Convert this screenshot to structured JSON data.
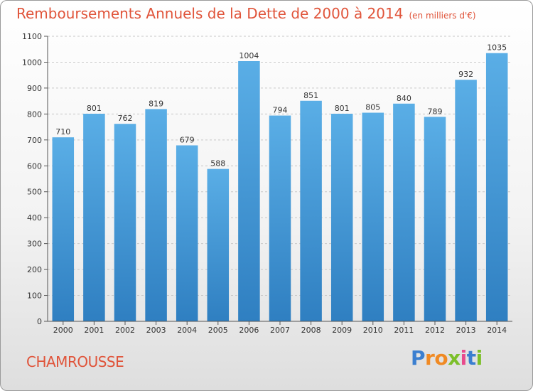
{
  "chart_data": {
    "type": "bar",
    "title": "Remboursements Annuels de la Dette de 2000 à 2014",
    "unit_label": "(en milliers d'€)",
    "xlabel": "",
    "ylabel": "",
    "categories": [
      "2000",
      "2001",
      "2002",
      "2003",
      "2004",
      "2005",
      "2006",
      "2007",
      "2008",
      "2009",
      "2010",
      "2011",
      "2012",
      "2013",
      "2014"
    ],
    "values": [
      710,
      801,
      762,
      819,
      679,
      588,
      1004,
      794,
      851,
      801,
      805,
      840,
      789,
      932,
      1035
    ],
    "ylim": [
      0,
      1100
    ],
    "yticks": [
      0,
      100,
      200,
      300,
      400,
      500,
      600,
      700,
      800,
      900,
      1000,
      1100
    ],
    "grid": true,
    "legend": "none",
    "colors": {
      "bar_top": "#5aaee6",
      "bar_bottom": "#2f7fc1",
      "title": "#e0543a",
      "grid": "#c8c8c8"
    }
  },
  "place_name": "CHAMROUSSE",
  "logo": {
    "letters": [
      {
        "ch": "P",
        "color": "#3b7fd0"
      },
      {
        "ch": "r",
        "color": "#f08a24"
      },
      {
        "ch": "o",
        "color": "#f08a24"
      },
      {
        "ch": "x",
        "color": "#7cbf2a"
      },
      {
        "ch": "i",
        "color": "#e84a8c"
      },
      {
        "ch": "t",
        "color": "#3b7fd0"
      },
      {
        "ch": "i",
        "color": "#7cbf2a"
      }
    ]
  }
}
